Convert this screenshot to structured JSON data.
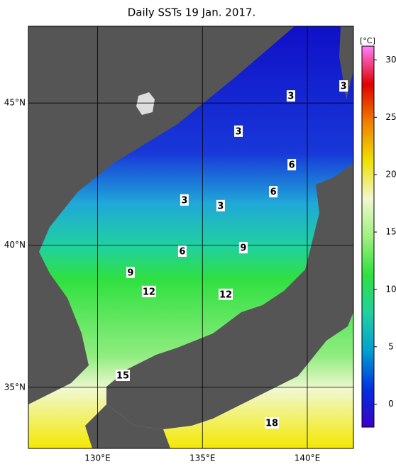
{
  "title": "Daily SSTs 19 Jan. 2017.",
  "map": {
    "xlim": [
      126.7,
      142.2
    ],
    "ylim": [
      32.85,
      47.7
    ],
    "xticks": [
      {
        "value": 130,
        "label": "130°E"
      },
      {
        "value": 135,
        "label": "135°E"
      },
      {
        "value": 140,
        "label": "140°E"
      }
    ],
    "yticks": [
      {
        "value": 35,
        "label": "35°N"
      },
      {
        "value": 40,
        "label": "40°N"
      },
      {
        "value": 45,
        "label": "45°N"
      }
    ],
    "grid": true,
    "contour_labels": [
      {
        "label": "3",
        "lon": 139.22,
        "lat": 45.25
      },
      {
        "label": "3",
        "lon": 141.73,
        "lat": 45.6
      },
      {
        "label": "3",
        "lon": 136.72,
        "lat": 44.01
      },
      {
        "label": "3",
        "lon": 134.14,
        "lat": 41.59
      },
      {
        "label": "3",
        "lon": 135.87,
        "lat": 41.39
      },
      {
        "label": "6",
        "lon": 139.26,
        "lat": 42.83
      },
      {
        "label": "6",
        "lon": 138.38,
        "lat": 41.88
      },
      {
        "label": "6",
        "lon": 134.04,
        "lat": 39.79
      },
      {
        "label": "9",
        "lon": 136.95,
        "lat": 39.91
      },
      {
        "label": "9",
        "lon": 131.57,
        "lat": 39.04
      },
      {
        "label": "12",
        "lon": 132.45,
        "lat": 38.37
      },
      {
        "label": "12",
        "lon": 136.11,
        "lat": 38.27
      },
      {
        "label": "15",
        "lon": 131.2,
        "lat": 35.42
      },
      {
        "label": "18",
        "lon": 138.31,
        "lat": 33.75
      }
    ]
  },
  "colorbar": {
    "unit": "[°C]",
    "range": [
      -2,
      31.2
    ],
    "ticks": [
      0,
      5,
      10,
      15,
      20,
      25,
      30
    ],
    "colors": [
      "#3a00c8",
      "#0030e0",
      "#00a0d0",
      "#20d0a0",
      "#30e040",
      "#a0f080",
      "#f0f8d0",
      "#f0e000",
      "#f08000",
      "#e00000",
      "#ff80ff"
    ]
  }
}
